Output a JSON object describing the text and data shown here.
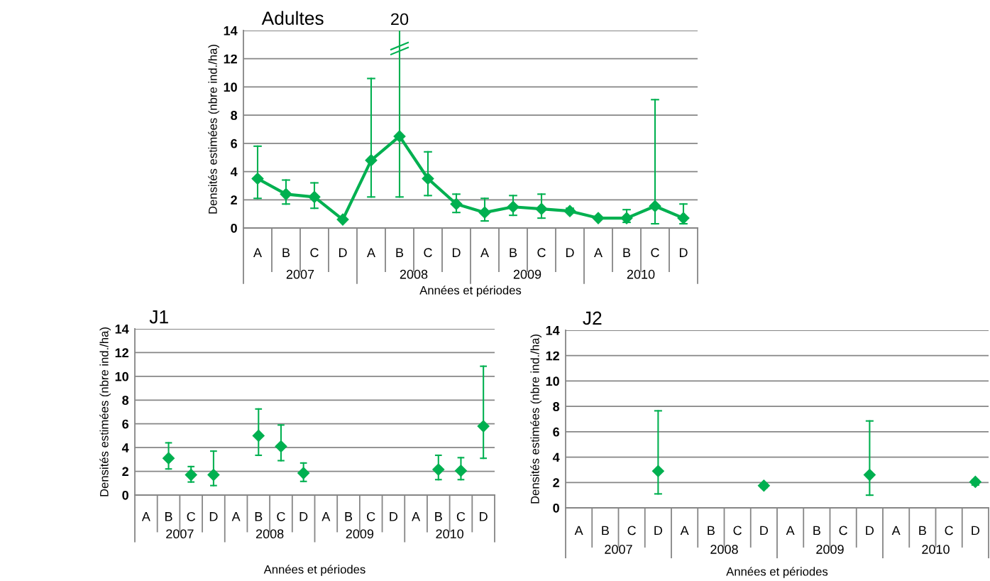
{
  "chart_data": [
    {
      "type": "line",
      "title": "Adultes",
      "xlabel": "Années et périodes",
      "ylabel": "Densités estimées (nbre ind./ha)",
      "categories": [
        "A",
        "B",
        "C",
        "D",
        "A",
        "B",
        "C",
        "D",
        "A",
        "B",
        "C",
        "D",
        "A",
        "B",
        "C",
        "D"
      ],
      "annotations": [
        "2007",
        "2008",
        "2009",
        "2010",
        "20"
      ],
      "series": [
        {
          "color": "#00b050",
          "values": [
            3.5,
            2.4,
            2.2,
            0.6,
            4.8,
            6.5,
            3.5,
            1.7,
            1.1,
            1.5,
            1.35,
            1.2,
            0.7,
            0.7,
            1.55,
            0.7
          ],
          "errors": [
            [
              2.1,
              5.8
            ],
            [
              1.7,
              3.4
            ],
            [
              1.4,
              3.2
            ],
            null,
            [
              2.2,
              10.6
            ],
            [
              2.2,
              14
            ],
            [
              2.3,
              5.4
            ],
            [
              1.1,
              2.4
            ],
            [
              0.5,
              2.1
            ],
            [
              0.9,
              2.3
            ],
            [
              0.7,
              2.4
            ],
            [
              1.2,
              1.4
            ],
            null,
            [
              0.4,
              1.3
            ],
            [
              0.3,
              9.1
            ],
            [
              0.3,
              1.7
            ]
          ]
        }
      ],
      "ylim": [
        0,
        14
      ],
      "yticks": [
        0,
        2,
        4,
        6,
        8,
        10,
        12,
        14
      ],
      "grid": "y",
      "marker": "diamond",
      "line_style": "solid"
    },
    {
      "type": "scatter",
      "title": "J1",
      "xlabel": "Années et périodes",
      "ylabel": "Densités estimées (nbre ind./ha)",
      "categories": [
        "A",
        "B",
        "C",
        "D",
        "A",
        "B",
        "C",
        "D",
        "A",
        "B",
        "C",
        "D",
        "A",
        "B",
        "C",
        "D"
      ],
      "annotations": [
        "2007",
        "2008",
        "2009",
        "2010"
      ],
      "series": [
        {
          "color": "#00b050",
          "values": [
            null,
            3.1,
            1.7,
            1.7,
            null,
            5.0,
            4.1,
            1.85,
            null,
            null,
            null,
            null,
            null,
            2.15,
            2.05,
            5.8
          ],
          "errors": [
            null,
            [
              2.2,
              4.4
            ],
            [
              1.1,
              2.4
            ],
            [
              0.8,
              3.7
            ],
            null,
            [
              3.35,
              7.25
            ],
            [
              2.9,
              5.9
            ],
            [
              1.15,
              2.7
            ],
            null,
            null,
            null,
            null,
            null,
            [
              1.3,
              3.35
            ],
            [
              1.3,
              3.15
            ],
            [
              3.1,
              10.85
            ]
          ]
        }
      ],
      "ylim": [
        0,
        14
      ],
      "yticks": [
        0,
        2,
        4,
        6,
        8,
        10,
        12,
        14
      ],
      "grid": "y",
      "marker": "diamond"
    },
    {
      "type": "scatter",
      "title": "J2",
      "xlabel": "Années et périodes",
      "ylabel": "Densités estimées (nbre ind./ha)",
      "categories": [
        "A",
        "B",
        "C",
        "D",
        "A",
        "B",
        "C",
        "D",
        "A",
        "B",
        "C",
        "D",
        "A",
        "B",
        "C",
        "D"
      ],
      "annotations": [
        "2007",
        "2008",
        "2009",
        "2010"
      ],
      "series": [
        {
          "color": "#00b050",
          "values": [
            null,
            null,
            null,
            2.9,
            null,
            null,
            null,
            1.75,
            null,
            null,
            null,
            2.6,
            null,
            null,
            null,
            2.05
          ],
          "errors": [
            null,
            null,
            null,
            [
              1.1,
              7.65
            ],
            null,
            null,
            null,
            [
              1.6,
              1.9
            ],
            null,
            null,
            null,
            [
              1.0,
              6.85
            ],
            null,
            null,
            null,
            [
              1.8,
              2.2
            ]
          ]
        }
      ],
      "ylim": [
        0,
        14
      ],
      "yticks": [
        0,
        2,
        4,
        6,
        8,
        10,
        12,
        14
      ],
      "grid": "y",
      "marker": "diamond"
    }
  ]
}
